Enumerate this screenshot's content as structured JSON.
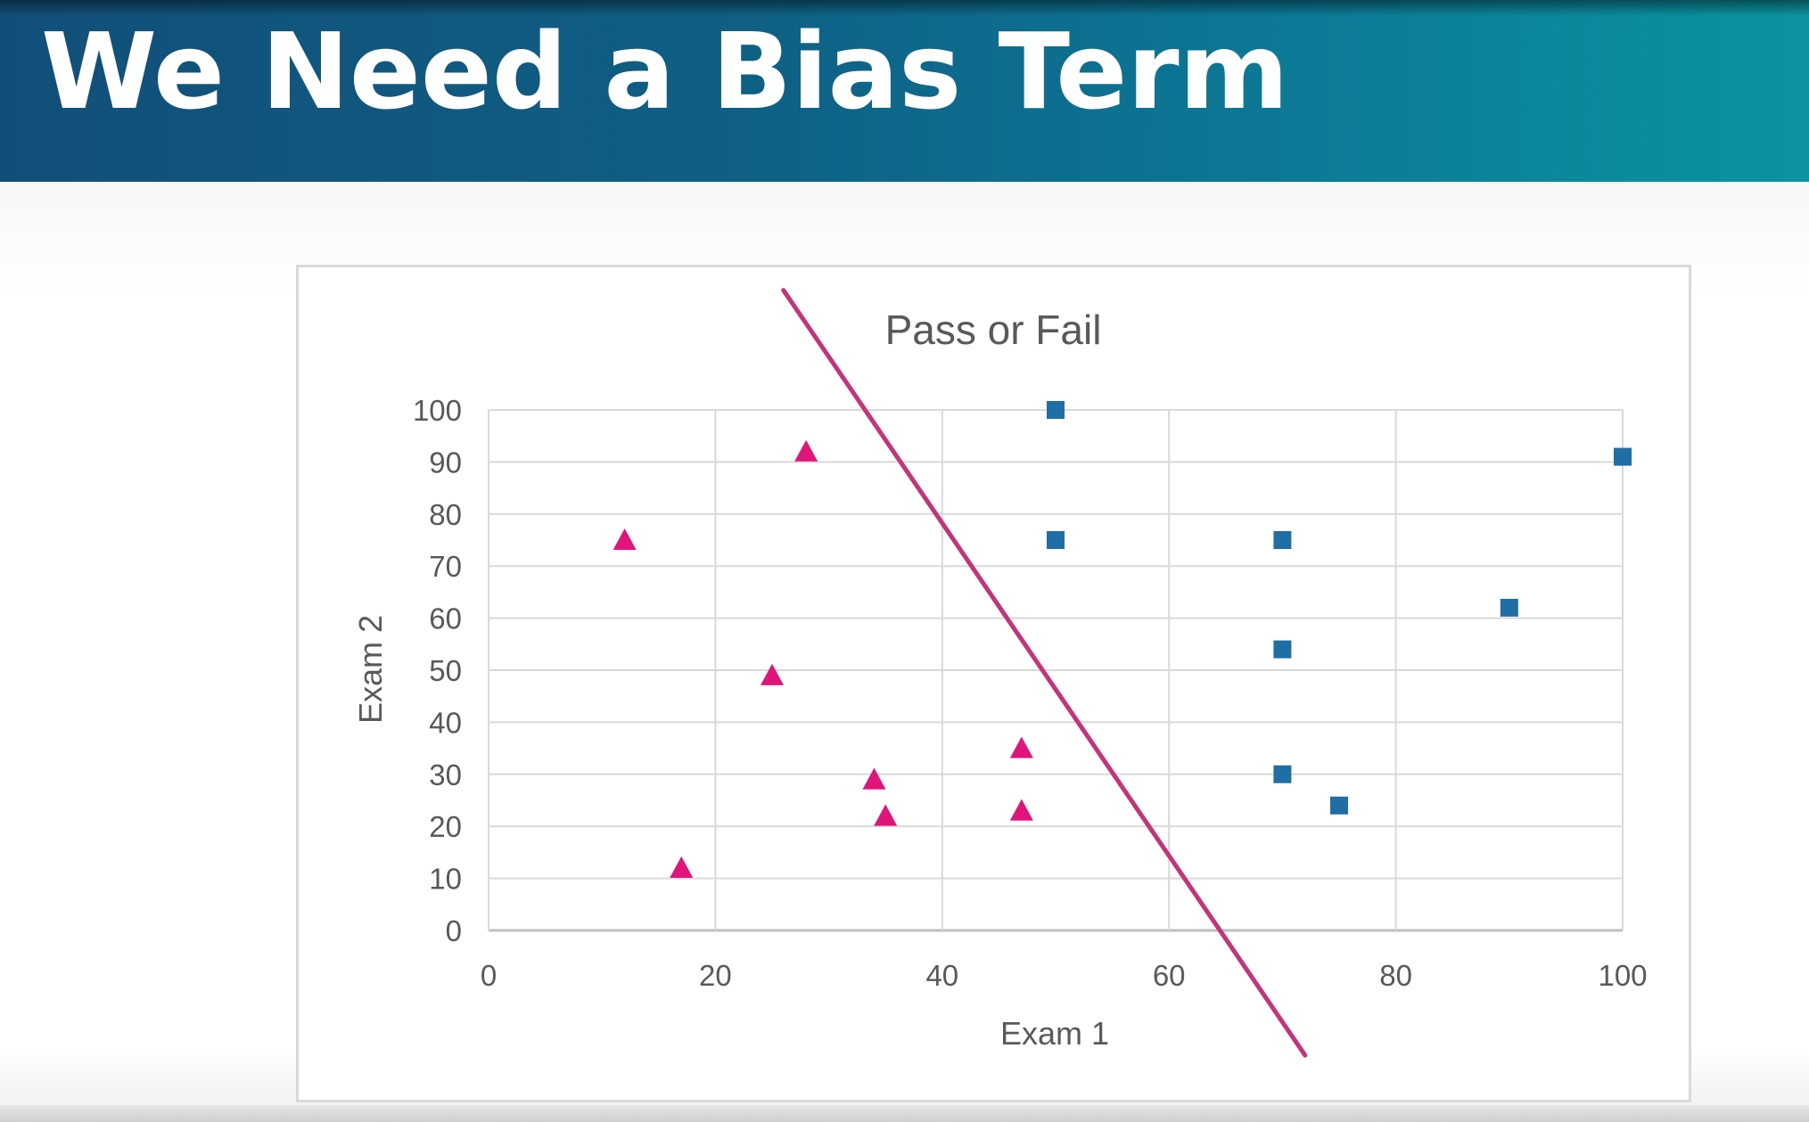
{
  "slide": {
    "title": "We Need a Bias Term"
  },
  "chart_data": {
    "type": "scatter",
    "title": "Pass or Fail",
    "xlabel": "Exam 1",
    "ylabel": "Exam 2",
    "xlim": [
      0,
      100
    ],
    "ylim": [
      0,
      100
    ],
    "xticks": [
      0,
      20,
      40,
      60,
      80,
      100
    ],
    "yticks": [
      0,
      10,
      20,
      30,
      40,
      50,
      60,
      70,
      80,
      90,
      100
    ],
    "grid": true,
    "legend": "none",
    "series": [
      {
        "marker": "triangle",
        "color": "#e0147a",
        "points": [
          {
            "x": 12,
            "y": 75
          },
          {
            "x": 17,
            "y": 12
          },
          {
            "x": 25,
            "y": 49
          },
          {
            "x": 28,
            "y": 92
          },
          {
            "x": 34,
            "y": 29
          },
          {
            "x": 35,
            "y": 22
          },
          {
            "x": 47,
            "y": 35
          },
          {
            "x": 47,
            "y": 23
          }
        ]
      },
      {
        "marker": "square",
        "color": "#1f6fa6",
        "points": [
          {
            "x": 50,
            "y": 100
          },
          {
            "x": 50,
            "y": 75
          },
          {
            "x": 70,
            "y": 75
          },
          {
            "x": 70,
            "y": 54
          },
          {
            "x": 70,
            "y": 30
          },
          {
            "x": 75,
            "y": 24
          },
          {
            "x": 90,
            "y": 62
          },
          {
            "x": 100,
            "y": 91
          }
        ]
      }
    ],
    "decision_line": {
      "color": "#c8327a",
      "from": {
        "x": 26,
        "y": 123
      },
      "to": {
        "x": 72,
        "y": -24
      }
    },
    "colors": {
      "grid": "#d9d9d9",
      "axis": "#bfbfbf",
      "text": "#595959"
    }
  }
}
